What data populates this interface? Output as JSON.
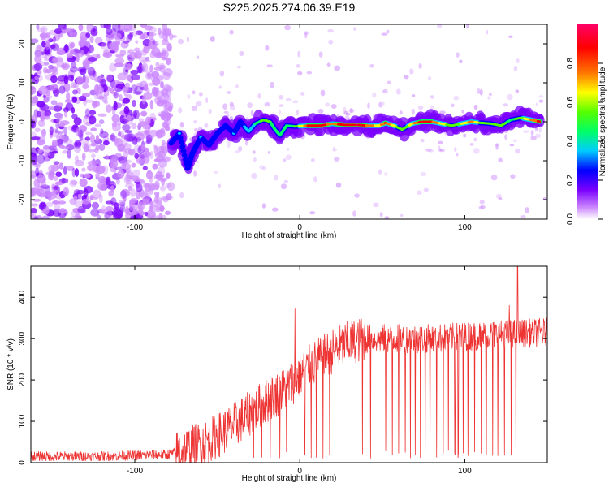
{
  "title": "S225.2025.274.06.39.E19",
  "chart_data": [
    {
      "type": "heatmap",
      "xlabel": "Height of straight line (km)",
      "ylabel": "Frequency (Hz)",
      "xlim": [
        -163,
        150
      ],
      "ylim": [
        -25,
        25
      ],
      "xticks": [
        -100,
        0,
        100
      ],
      "yticks": [
        -20,
        -10,
        0,
        10,
        20
      ],
      "colorbar": {
        "label": "Normalized spectral amplitude",
        "range": [
          0,
          1
        ],
        "ticks": [
          0.0,
          0.2,
          0.4,
          0.6,
          0.8
        ],
        "tick_labels": [
          "0.0",
          "0.2",
          "0.4",
          "0.6",
          "0.8"
        ],
        "colormap": [
          "#ffffff",
          "#cc88ff",
          "#7a00ff",
          "#0000ff",
          "#00ccff",
          "#00ff66",
          "#55ff00",
          "#ffff00",
          "#ff7700",
          "#ff0000",
          "#ff0066"
        ]
      },
      "ridge": [
        {
          "x": -78,
          "y": -5.5,
          "a": 0.3
        },
        {
          "x": -73,
          "y": -3,
          "a": 0.35
        },
        {
          "x": -68,
          "y": -12,
          "a": 0.3
        },
        {
          "x": -65,
          "y": -8,
          "a": 0.3
        },
        {
          "x": -60,
          "y": -4,
          "a": 0.35
        },
        {
          "x": -55,
          "y": -6,
          "a": 0.3
        },
        {
          "x": -50,
          "y": -3,
          "a": 0.3
        },
        {
          "x": -45,
          "y": -1,
          "a": 0.3
        },
        {
          "x": -40,
          "y": -3,
          "a": 0.35
        },
        {
          "x": -36,
          "y": 0,
          "a": 0.3
        },
        {
          "x": -31,
          "y": -2.5,
          "a": 0.4
        },
        {
          "x": -27,
          "y": -0.5,
          "a": 0.45
        },
        {
          "x": -22,
          "y": 0.5,
          "a": 0.6
        },
        {
          "x": -18,
          "y": 0,
          "a": 0.55
        },
        {
          "x": -15,
          "y": -2,
          "a": 0.45
        },
        {
          "x": -12,
          "y": -3.5,
          "a": 0.45
        },
        {
          "x": -8,
          "y": -1,
          "a": 0.5
        },
        {
          "x": -3,
          "y": -1.2,
          "a": 0.55
        },
        {
          "x": 5,
          "y": -1,
          "a": 0.85
        },
        {
          "x": 12,
          "y": -1,
          "a": 0.9
        },
        {
          "x": 20,
          "y": -0.5,
          "a": 0.8
        },
        {
          "x": 27,
          "y": -0.8,
          "a": 0.9
        },
        {
          "x": 35,
          "y": -0.8,
          "a": 0.95
        },
        {
          "x": 42,
          "y": -1,
          "a": 0.8
        },
        {
          "x": 48,
          "y": -1,
          "a": 0.7
        },
        {
          "x": 52,
          "y": -0.3,
          "a": 0.85
        },
        {
          "x": 57,
          "y": -1,
          "a": 0.7
        },
        {
          "x": 62,
          "y": -2,
          "a": 0.55
        },
        {
          "x": 68,
          "y": -0.5,
          "a": 0.7
        },
        {
          "x": 74,
          "y": 0,
          "a": 0.9
        },
        {
          "x": 80,
          "y": 0,
          "a": 0.85
        },
        {
          "x": 86,
          "y": -0.5,
          "a": 0.7
        },
        {
          "x": 92,
          "y": -1,
          "a": 0.6
        },
        {
          "x": 98,
          "y": -0.5,
          "a": 0.65
        },
        {
          "x": 104,
          "y": 0,
          "a": 0.8
        },
        {
          "x": 110,
          "y": -0.3,
          "a": 0.6
        },
        {
          "x": 116,
          "y": -0.5,
          "a": 0.55
        },
        {
          "x": 122,
          "y": -1,
          "a": 0.6
        },
        {
          "x": 128,
          "y": 0.5,
          "a": 0.5
        },
        {
          "x": 134,
          "y": 1,
          "a": 0.6
        },
        {
          "x": 140,
          "y": 0.5,
          "a": 0.75
        },
        {
          "x": 146,
          "y": 0,
          "a": 0.9
        }
      ]
    },
    {
      "type": "line",
      "xlabel": "Height of straight line (km)",
      "ylabel": "SNR (10 * v/v)",
      "xlim": [
        -163,
        150
      ],
      "ylim": [
        0,
        475
      ],
      "xticks": [
        -100,
        0,
        100
      ],
      "yticks": [
        0,
        100,
        200,
        300,
        400
      ],
      "series": [
        {
          "color": "#ee3333",
          "envelope": [
            {
              "x": -163,
              "y": 15
            },
            {
              "x": -120,
              "y": 15
            },
            {
              "x": -80,
              "y": 20
            },
            {
              "x": -70,
              "y": 30
            },
            {
              "x": -60,
              "y": 45
            },
            {
              "x": -50,
              "y": 65
            },
            {
              "x": -40,
              "y": 90
            },
            {
              "x": -30,
              "y": 120
            },
            {
              "x": -20,
              "y": 150
            },
            {
              "x": -10,
              "y": 175
            },
            {
              "x": 0,
              "y": 210
            },
            {
              "x": 10,
              "y": 245
            },
            {
              "x": 20,
              "y": 270
            },
            {
              "x": 30,
              "y": 290
            },
            {
              "x": 40,
              "y": 300
            },
            {
              "x": 60,
              "y": 300
            },
            {
              "x": 80,
              "y": 300
            },
            {
              "x": 100,
              "y": 305
            },
            {
              "x": 120,
              "y": 310
            },
            {
              "x": 150,
              "y": 315
            }
          ],
          "spikes": [
            {
              "x": -3,
              "y": 372
            },
            {
              "x": 132,
              "y": 475
            },
            {
              "x": 127,
              "y": 380
            }
          ],
          "dropouts": [
            -28,
            -23,
            -18,
            -12,
            -8,
            -3,
            3,
            7,
            10,
            14,
            18,
            38,
            43,
            52,
            56,
            60,
            64,
            67,
            70,
            73,
            76,
            79,
            83,
            87,
            90,
            94,
            96,
            99,
            102,
            106,
            110,
            113,
            117,
            120,
            124,
            128,
            131
          ]
        }
      ]
    }
  ]
}
